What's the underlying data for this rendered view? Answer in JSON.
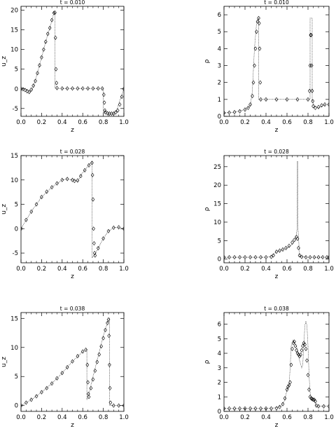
{
  "chart_data": [
    {
      "type": "line",
      "panel": "row1-left",
      "title": "t = 0.010",
      "xlabel": "z",
      "ylabel": "u_z",
      "xlim": [
        0.0,
        1.0
      ],
      "ylim": [
        -7,
        21
      ],
      "xticks": [
        0.0,
        0.2,
        0.4,
        0.6,
        0.8,
        1.0
      ],
      "xtick_labels": [
        "0.0",
        "0.2",
        "0.4",
        "0.6",
        "0.8",
        "1.0"
      ],
      "yticks": [
        -5,
        0,
        5,
        10,
        15,
        20
      ],
      "ytick_labels": [
        "-5",
        "0",
        "5",
        "10",
        "15",
        "20"
      ],
      "series": [
        {
          "style": "dotted-line",
          "x": [
            0.0,
            0.05,
            0.09,
            0.12,
            0.16,
            0.2,
            0.24,
            0.28,
            0.32,
            0.33,
            0.33,
            0.34,
            0.5,
            0.7,
            0.8,
            0.8,
            0.82,
            0.86,
            0.9,
            0.93,
            0.96,
            1.0
          ],
          "y": [
            0.0,
            -0.2,
            -0.8,
            0.5,
            4.0,
            8.0,
            12.0,
            15.5,
            19.3,
            19.3,
            0.3,
            0.1,
            0.1,
            0.1,
            0.1,
            -6.0,
            -6.2,
            -6.3,
            -6.3,
            -5.5,
            -3.0,
            0.0
          ]
        },
        {
          "style": "diamond-markers",
          "x": [
            0.0,
            0.02,
            0.04,
            0.06,
            0.08,
            0.1,
            0.12,
            0.14,
            0.16,
            0.18,
            0.2,
            0.22,
            0.24,
            0.26,
            0.28,
            0.3,
            0.32,
            0.33,
            0.335,
            0.34,
            0.345,
            0.35,
            0.4,
            0.45,
            0.5,
            0.55,
            0.6,
            0.65,
            0.7,
            0.75,
            0.79,
            0.805,
            0.81,
            0.815,
            0.82,
            0.84,
            0.86,
            0.88,
            0.9,
            0.92,
            0.94,
            0.96,
            0.98,
            1.0
          ],
          "y": [
            0.0,
            -0.1,
            -0.3,
            -0.6,
            -0.8,
            -0.2,
            0.8,
            2.0,
            4.0,
            6.0,
            8.0,
            10.0,
            12.0,
            14.0,
            15.5,
            17.5,
            19.3,
            19.4,
            13.0,
            5.0,
            1.5,
            0.2,
            0.1,
            0.1,
            0.1,
            0.1,
            0.1,
            0.1,
            0.1,
            0.1,
            0.1,
            -1.5,
            -3.5,
            -5.5,
            -6.0,
            -6.2,
            -6.3,
            -6.3,
            -6.3,
            -6.0,
            -5.5,
            -4.0,
            -2.0,
            0.0
          ]
        }
      ]
    },
    {
      "type": "line",
      "panel": "row1-right",
      "title": "t = 0.010",
      "xlabel": "z",
      "ylabel": "ρ",
      "xlim": [
        0.0,
        1.0
      ],
      "ylim": [
        0,
        6.5
      ],
      "xticks": [
        0.0,
        0.2,
        0.4,
        0.6,
        0.8,
        1.0
      ],
      "xtick_labels": [
        "0.0",
        "0.2",
        "0.4",
        "0.6",
        "0.8",
        "1.0"
      ],
      "yticks": [
        0,
        1,
        2,
        3,
        4,
        5,
        6
      ],
      "ytick_labels": [
        "0",
        "1",
        "2",
        "3",
        "4",
        "5",
        "6"
      ],
      "series": [
        {
          "style": "dotted-line",
          "x": [
            0.0,
            0.1,
            0.2,
            0.25,
            0.27,
            0.29,
            0.31,
            0.33,
            0.33,
            0.34,
            0.5,
            0.7,
            0.82,
            0.82,
            0.84,
            0.84,
            0.86,
            0.9,
            0.93,
            0.96,
            1.0
          ],
          "y": [
            0.2,
            0.25,
            0.4,
            0.6,
            1.5,
            4.0,
            5.5,
            5.8,
            1.0,
            1.0,
            1.0,
            1.0,
            1.0,
            5.8,
            5.8,
            1.0,
            0.6,
            0.5,
            0.6,
            0.7,
            0.7
          ]
        },
        {
          "style": "diamond-markers",
          "x": [
            0.0,
            0.05,
            0.1,
            0.15,
            0.2,
            0.23,
            0.25,
            0.27,
            0.28,
            0.29,
            0.3,
            0.31,
            0.32,
            0.33,
            0.335,
            0.34,
            0.345,
            0.35,
            0.4,
            0.5,
            0.6,
            0.7,
            0.8,
            0.815,
            0.82,
            0.825,
            0.83,
            0.835,
            0.84,
            0.845,
            0.85,
            0.87,
            0.9,
            0.93,
            0.96,
            1.0
          ],
          "y": [
            0.2,
            0.22,
            0.25,
            0.3,
            0.4,
            0.5,
            0.7,
            1.2,
            2.0,
            3.0,
            4.0,
            5.0,
            5.6,
            5.8,
            5.5,
            4.0,
            2.0,
            1.0,
            1.0,
            1.0,
            1.0,
            1.0,
            1.0,
            1.5,
            3.0,
            4.8,
            4.8,
            3.0,
            1.5,
            0.9,
            0.6,
            0.5,
            0.55,
            0.65,
            0.7,
            0.7
          ]
        }
      ]
    },
    {
      "type": "line",
      "panel": "row2-left",
      "title": "t = 0.028",
      "xlabel": "z",
      "ylabel": "u_z",
      "xlim": [
        0.0,
        1.0
      ],
      "ylim": [
        -7,
        15
      ],
      "xticks": [
        0.0,
        0.2,
        0.4,
        0.6,
        0.8,
        1.0
      ],
      "xtick_labels": [
        "0.0",
        "0.2",
        "0.4",
        "0.6",
        "0.8",
        "1.0"
      ],
      "yticks": [
        -5,
        0,
        5,
        10,
        15
      ],
      "ytick_labels": [
        "-5",
        "0",
        "5",
        "10",
        "15"
      ],
      "series": [
        {
          "style": "dotted-line",
          "x": [
            0.0,
            0.1,
            0.2,
            0.3,
            0.4,
            0.45,
            0.5,
            0.55,
            0.6,
            0.65,
            0.69,
            0.69,
            0.72,
            0.8,
            0.85,
            0.9,
            0.95,
            1.0
          ],
          "y": [
            0.0,
            3.5,
            6.5,
            8.5,
            10.0,
            10.2,
            10.0,
            9.8,
            11.5,
            12.8,
            13.8,
            -6.0,
            -5.2,
            -2.0,
            -0.5,
            0.2,
            0.3,
            0.0
          ],
          "hidden_in_image": false
        },
        {
          "style": "diamond-markers",
          "x": [
            0.0,
            0.05,
            0.1,
            0.15,
            0.2,
            0.25,
            0.3,
            0.35,
            0.4,
            0.45,
            0.5,
            0.52,
            0.55,
            0.58,
            0.62,
            0.66,
            0.69,
            0.695,
            0.7,
            0.705,
            0.71,
            0.715,
            0.72,
            0.75,
            0.8,
            0.85,
            0.9,
            0.95,
            1.0
          ],
          "y": [
            0.0,
            1.8,
            3.5,
            5.0,
            6.5,
            7.6,
            8.5,
            9.3,
            10.0,
            10.2,
            10.0,
            9.8,
            9.9,
            10.8,
            12.0,
            13.0,
            13.5,
            11.0,
            6.0,
            0.0,
            -3.0,
            -5.0,
            -5.5,
            -4.0,
            -2.0,
            -0.5,
            0.2,
            0.3,
            0.0
          ]
        }
      ]
    },
    {
      "type": "line",
      "panel": "row2-right",
      "title": "t = 0.028",
      "xlabel": "z",
      "ylabel": "ρ",
      "xlim": [
        0.0,
        1.0
      ],
      "ylim": [
        -1,
        28
      ],
      "xticks": [
        0.0,
        0.2,
        0.4,
        0.6,
        0.8,
        1.0
      ],
      "xtick_labels": [
        "0.0",
        "0.2",
        "0.4",
        "0.6",
        "0.8",
        "1.0"
      ],
      "yticks": [
        0,
        5,
        10,
        15,
        20,
        25
      ],
      "ytick_labels": [
        "0",
        "5",
        "10",
        "15",
        "20",
        "25"
      ],
      "series": [
        {
          "style": "dotted-line",
          "x": [
            0.0,
            0.2,
            0.4,
            0.45,
            0.5,
            0.55,
            0.6,
            0.65,
            0.68,
            0.695,
            0.7,
            0.705,
            0.72,
            0.8,
            0.9,
            1.0
          ],
          "y": [
            0.5,
            0.5,
            0.5,
            0.7,
            2.0,
            2.5,
            3.0,
            4.0,
            5.0,
            8.0,
            26.5,
            8.0,
            0.7,
            0.5,
            0.5,
            0.5
          ]
        },
        {
          "style": "diamond-markers",
          "x": [
            0.0,
            0.05,
            0.1,
            0.15,
            0.2,
            0.25,
            0.3,
            0.35,
            0.4,
            0.45,
            0.47,
            0.5,
            0.53,
            0.56,
            0.59,
            0.62,
            0.65,
            0.67,
            0.69,
            0.7,
            0.71,
            0.72,
            0.74,
            0.78,
            0.82,
            0.86,
            0.9,
            0.94,
            0.98,
            1.0
          ],
          "y": [
            0.5,
            0.5,
            0.5,
            0.5,
            0.5,
            0.5,
            0.5,
            0.5,
            0.5,
            0.6,
            1.0,
            2.0,
            2.3,
            2.6,
            3.0,
            3.6,
            4.5,
            5.2,
            6.0,
            5.5,
            3.0,
            1.0,
            0.6,
            0.5,
            0.5,
            0.5,
            0.5,
            0.5,
            0.5,
            0.5
          ]
        }
      ]
    },
    {
      "type": "line",
      "panel": "row3-left",
      "title": "t = 0.038",
      "xlabel": "z",
      "ylabel": "u_z",
      "xlim": [
        0.0,
        1.0
      ],
      "ylim": [
        -1,
        16
      ],
      "xticks": [
        0.0,
        0.2,
        0.4,
        0.6,
        0.8,
        1.0
      ],
      "xtick_labels": [
        "0.0",
        "0.2",
        "0.4",
        "0.6",
        "0.8",
        "1.0"
      ],
      "yticks": [
        0,
        5,
        10,
        15
      ],
      "ytick_labels": [
        "0",
        "5",
        "10",
        "15"
      ],
      "series": [
        {
          "style": "dotted-line",
          "x": [
            0.0,
            0.1,
            0.2,
            0.3,
            0.4,
            0.5,
            0.6,
            0.64,
            0.64,
            0.66,
            0.7,
            0.75,
            0.8,
            0.85,
            0.86,
            0.86,
            0.9,
            1.0
          ],
          "y": [
            0.0,
            1.0,
            2.3,
            3.8,
            5.6,
            7.6,
            9.3,
            9.7,
            1.0,
            2.0,
            5.0,
            8.5,
            12.0,
            14.8,
            15.0,
            0.0,
            0.0,
            0.0
          ]
        },
        {
          "style": "diamond-markers",
          "x": [
            0.0,
            0.05,
            0.1,
            0.15,
            0.2,
            0.25,
            0.3,
            0.35,
            0.4,
            0.45,
            0.5,
            0.55,
            0.6,
            0.63,
            0.645,
            0.65,
            0.655,
            0.66,
            0.68,
            0.7,
            0.72,
            0.74,
            0.76,
            0.78,
            0.8,
            0.82,
            0.84,
            0.85,
            0.855,
            0.86,
            0.865,
            0.87,
            0.9,
            0.95,
            1.0
          ],
          "y": [
            0.0,
            0.5,
            1.0,
            1.6,
            2.3,
            3.0,
            3.8,
            4.7,
            5.6,
            6.6,
            7.6,
            8.5,
            9.3,
            9.6,
            7.0,
            4.0,
            2.0,
            1.5,
            3.0,
            4.5,
            6.0,
            7.5,
            8.8,
            10.2,
            11.6,
            13.0,
            14.2,
            14.8,
            12.0,
            7.0,
            3.0,
            0.5,
            0.0,
            0.0,
            0.0
          ]
        }
      ]
    },
    {
      "type": "line",
      "panel": "row3-right",
      "title": "t = 0.038",
      "xlabel": "z",
      "ylabel": "ρ",
      "xlim": [
        0.0,
        1.0
      ],
      "ylim": [
        0,
        6.8
      ],
      "xticks": [
        0.0,
        0.2,
        0.4,
        0.6,
        0.8,
        1.0
      ],
      "xtick_labels": [
        "0.0",
        "0.2",
        "0.4",
        "0.6",
        "0.8",
        "1.0"
      ],
      "yticks": [
        0,
        1,
        2,
        3,
        4,
        5,
        6
      ],
      "ytick_labels": [
        "0",
        "1",
        "2",
        "3",
        "4",
        "5",
        "6"
      ],
      "series": [
        {
          "style": "dotted-line",
          "x": [
            0.0,
            0.2,
            0.4,
            0.5,
            0.55,
            0.58,
            0.6,
            0.62,
            0.63,
            0.64,
            0.66,
            0.69,
            0.72,
            0.74,
            0.75,
            0.76,
            0.77,
            0.78,
            0.79,
            0.8,
            0.81,
            0.82,
            0.83,
            0.84,
            0.85,
            0.86,
            0.87,
            0.88,
            1.0
          ],
          "y": [
            0.2,
            0.2,
            0.2,
            0.25,
            0.4,
            0.8,
            1.5,
            1.8,
            3.0,
            4.5,
            4.9,
            4.5,
            3.5,
            3.0,
            3.2,
            4.5,
            5.9,
            6.2,
            5.9,
            4.5,
            2.5,
            1.3,
            0.9,
            0.8,
            0.8,
            0.8,
            0.5,
            0.35,
            0.35
          ]
        },
        {
          "style": "diamond-markers",
          "x": [
            0.0,
            0.05,
            0.1,
            0.15,
            0.2,
            0.25,
            0.3,
            0.35,
            0.4,
            0.45,
            0.5,
            0.53,
            0.56,
            0.58,
            0.6,
            0.61,
            0.62,
            0.63,
            0.64,
            0.65,
            0.66,
            0.67,
            0.68,
            0.69,
            0.7,
            0.71,
            0.72,
            0.73,
            0.74,
            0.75,
            0.76,
            0.77,
            0.78,
            0.79,
            0.8,
            0.81,
            0.82,
            0.83,
            0.84,
            0.85,
            0.86,
            0.87,
            0.88,
            0.9,
            0.95,
            1.0
          ],
          "y": [
            0.2,
            0.2,
            0.2,
            0.2,
            0.2,
            0.2,
            0.2,
            0.2,
            0.2,
            0.2,
            0.22,
            0.3,
            0.5,
            0.9,
            1.5,
            1.7,
            1.8,
            2.0,
            3.2,
            4.3,
            4.7,
            4.8,
            4.5,
            4.2,
            4.0,
            3.9,
            3.8,
            3.9,
            4.2,
            4.5,
            4.7,
            4.6,
            4.3,
            3.5,
            2.5,
            1.5,
            1.0,
            0.9,
            0.85,
            0.8,
            0.8,
            0.7,
            0.4,
            0.35,
            0.35,
            0.35
          ]
        }
      ]
    }
  ]
}
